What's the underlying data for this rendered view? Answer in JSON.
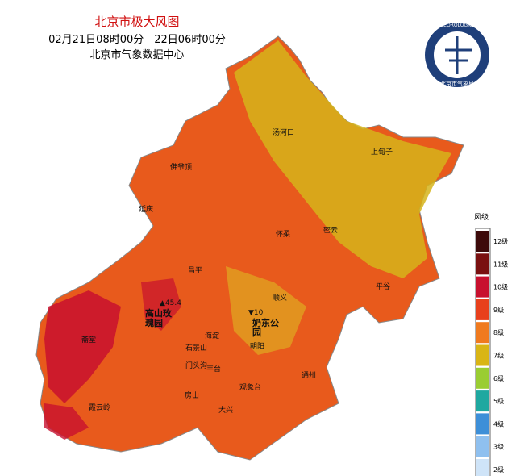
{
  "header": {
    "title": "北京市极大风图",
    "subtitle": "02月21日08时00分—22日06时00分",
    "source": "北京市气象数据中心"
  },
  "logo": {
    "text_en": "BEIJING METEOROLOGICAL SERVICE",
    "text_cn": "北京市气象局"
  },
  "places": [
    {
      "label": "汤河口"
    },
    {
      "label": "上甸子"
    },
    {
      "label": "佛爷顶"
    },
    {
      "label": "延庆"
    },
    {
      "label": "怀柔"
    },
    {
      "label": "密云"
    },
    {
      "label": "昌平"
    },
    {
      "label": "平谷"
    },
    {
      "label": "顺义"
    },
    {
      "label": "斋堂"
    },
    {
      "label": "海淀"
    },
    {
      "label": "石景山"
    },
    {
      "label": "朝阳"
    },
    {
      "label": "门头沟"
    },
    {
      "label": "丰台"
    },
    {
      "label": "通州"
    },
    {
      "label": "观象台"
    },
    {
      "label": "房山"
    },
    {
      "label": "大兴"
    },
    {
      "label": "霞云岭"
    }
  ],
  "highlights": [
    {
      "label": "高山玫瑰园",
      "value": "▲45.4"
    },
    {
      "label": "奶东公园",
      "value": "▼10"
    }
  ],
  "legend": {
    "title": "风级",
    "items": [
      {
        "label": "12级",
        "color": "#3d0a0a"
      },
      {
        "label": "11级",
        "color": "#7a1010"
      },
      {
        "label": "10级",
        "color": "#c8102e"
      },
      {
        "label": "9级",
        "color": "#e8401c"
      },
      {
        "label": "8级",
        "color": "#f07a1e"
      },
      {
        "label": "7级",
        "color": "#d9b515"
      },
      {
        "label": "6级",
        "color": "#9acd32"
      },
      {
        "label": "5级",
        "color": "#1fa8a0"
      },
      {
        "label": "4级",
        "color": "#3d8fd8"
      },
      {
        "label": "3级",
        "color": "#8fc0ef"
      },
      {
        "label": "2级",
        "color": "#cfe4f8"
      }
    ]
  }
}
